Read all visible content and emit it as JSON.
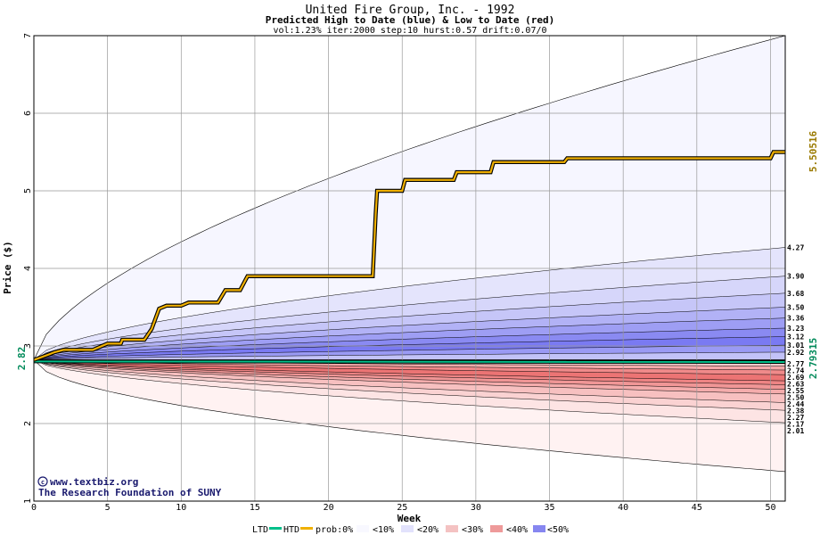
{
  "chart_data": {
    "type": "area",
    "title": "United Fire Group, Inc. - 1992",
    "subtitle": "Predicted High to Date (blue) &  Low to Date (red)",
    "params": "vol:1.23% iter:2000 step:10 hurst:0.57 drift:0.07/0",
    "xlabel": "Week",
    "ylabel": "Price ($)",
    "xlim": [
      0,
      51
    ],
    "ylim": [
      1,
      7
    ],
    "x_ticks": [
      "0",
      "5",
      "10",
      "15",
      "20",
      "25",
      "30",
      "35",
      "40",
      "45",
      "50"
    ],
    "y_ticks": [
      "1",
      "2",
      "3",
      "4",
      "5",
      "6",
      "7"
    ],
    "start_value": "2.82",
    "ltd_value": "2.79315",
    "htd_value": "5.50516",
    "right_labels": [
      "4.27",
      "3.90",
      "3.68",
      "3.50",
      "3.36",
      "3.23",
      "3.12",
      "3.01",
      "2.92",
      "2.77",
      "2.74",
      "2.69",
      "2.63",
      "2.55",
      "2.50",
      "2.44",
      "2.38",
      "2.27",
      "2.17",
      "2.01"
    ],
    "high_bands": [
      4.27,
      3.9,
      3.68,
      3.5,
      3.36,
      3.23,
      3.12,
      3.01,
      2.92
    ],
    "low_bands": [
      2.74,
      2.69,
      2.63,
      2.55,
      2.5,
      2.44,
      2.38,
      2.27,
      2.17,
      2.01
    ],
    "outer_high_end": 7.0,
    "outer_low_end": 1.38,
    "htd_series": {
      "name": "HTD",
      "x": [
        0,
        1,
        1.4,
        2,
        4,
        5,
        5.9,
        6,
        7.5,
        8,
        8.5,
        9,
        10,
        10.5,
        12.5,
        13,
        14,
        14.5,
        23,
        23.2,
        23.3,
        25,
        25.2,
        28.5,
        28.7,
        31,
        31.2,
        36,
        36.2,
        50,
        50.2,
        51
      ],
      "y": [
        2.82,
        2.89,
        2.92,
        2.95,
        2.95,
        3.03,
        3.03,
        3.08,
        3.08,
        3.22,
        3.48,
        3.52,
        3.52,
        3.56,
        3.56,
        3.72,
        3.72,
        3.9,
        3.9,
        4.7,
        5.0,
        5.0,
        5.14,
        5.14,
        5.24,
        5.24,
        5.37,
        5.37,
        5.42,
        5.42,
        5.5,
        5.5
      ]
    },
    "ltd_series": {
      "name": "LTD",
      "x": [
        0,
        51
      ],
      "y": [
        2.8,
        2.79315
      ]
    },
    "grid": true,
    "colors": {
      "htd": "#f0b000",
      "ltd": "#00c08a",
      "high_band": "#6a6cf0",
      "low_band": "#f04a4a",
      "ltd_text": "#008a5a",
      "htd_text": "#9a7a00"
    }
  },
  "legend": {
    "ltd": "LTD",
    "htd": "HTD",
    "prob": "prob:0%",
    "lt10": "<10%",
    "lt20": "<20%",
    "lt30": "<30%",
    "lt40": "<40%",
    "lt50": "<50%"
  },
  "watermark": {
    "site": "www.textbiz.org",
    "org": "The Research Foundation of SUNY"
  }
}
